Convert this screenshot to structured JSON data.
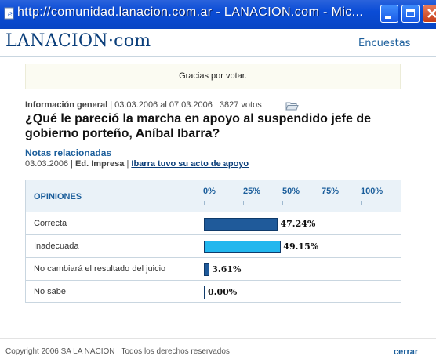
{
  "window": {
    "title": "http://comunidad.lanacion.com.ar - LANACION.com - Mic..."
  },
  "header": {
    "logo": "LANACION·com",
    "section_link": "Encuestas"
  },
  "notice": "Gracias por votar.",
  "poll": {
    "category": "Información general",
    "date_range": "03.03.2006 al 07.03.2006",
    "votes": "3827 votos",
    "question": "¿Qué le pareció la marcha en apoyo al suspendido jefe de gobierno porteño, Aníbal Ibarra?",
    "related_title": "Notas relacionadas",
    "related_date": "03.03.2006",
    "related_source": "Ed. Impresa",
    "related_article": "Ibarra tuvo su acto de apoyo"
  },
  "results": {
    "header_label": "OPINIONES",
    "scale": [
      "0%",
      "25%",
      "50%",
      "75%",
      "100%"
    ],
    "rows": [
      {
        "label": "Correcta",
        "percent_text": "47.24%",
        "value": 47.24,
        "color": "#1f5a9a"
      },
      {
        "label": "Inadecuada",
        "percent_text": "49.15%",
        "value": 49.15,
        "color": "#22b7ee"
      },
      {
        "label": "No cambiará el resultado del juicio",
        "percent_text": "3.61%",
        "value": 3.61,
        "color": "#1f5a9a"
      },
      {
        "label": "No sabe",
        "percent_text": "0.00%",
        "value": 0.0,
        "color": "#1f5a9a"
      }
    ]
  },
  "footer": {
    "copyright": "Copyright 2006 SA LA NACION | Todos los derechos reservados",
    "close": "cerrar"
  },
  "icons": {
    "app": "ie-page-icon",
    "minimize": "minimize-icon",
    "maximize": "maximize-icon",
    "close": "close-icon",
    "folder": "folder-icon"
  }
}
